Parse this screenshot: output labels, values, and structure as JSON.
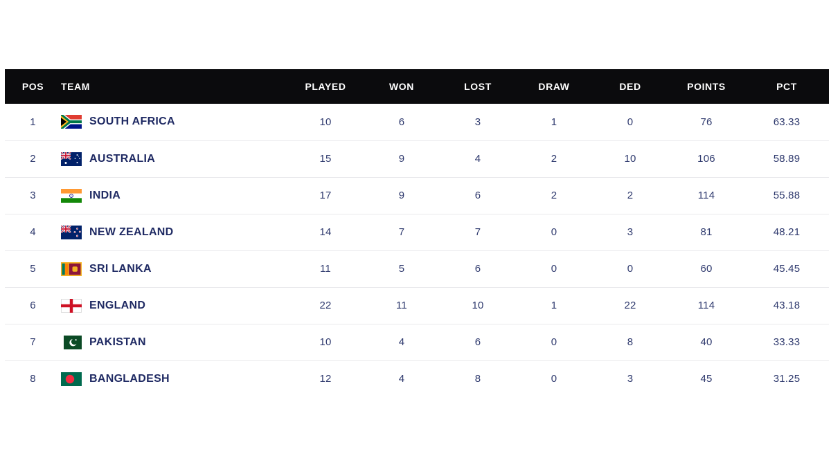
{
  "chart_data": {
    "type": "table",
    "title": "",
    "columns": [
      {
        "key": "pos",
        "label": "POS"
      },
      {
        "key": "team",
        "label": "TEAM"
      },
      {
        "key": "played",
        "label": "PLAYED"
      },
      {
        "key": "won",
        "label": "WON"
      },
      {
        "key": "lost",
        "label": "LOST"
      },
      {
        "key": "draw",
        "label": "DRAW"
      },
      {
        "key": "ded",
        "label": "DED"
      },
      {
        "key": "points",
        "label": "POINTS"
      },
      {
        "key": "pct",
        "label": "PCT"
      }
    ],
    "rows": [
      {
        "pos": "1",
        "team": "SOUTH AFRICA",
        "flag": "south-africa",
        "played": "10",
        "won": "6",
        "lost": "3",
        "draw": "1",
        "ded": "0",
        "points": "76",
        "pct": "63.33"
      },
      {
        "pos": "2",
        "team": "AUSTRALIA",
        "flag": "australia",
        "played": "15",
        "won": "9",
        "lost": "4",
        "draw": "2",
        "ded": "10",
        "points": "106",
        "pct": "58.89"
      },
      {
        "pos": "3",
        "team": "INDIA",
        "flag": "india",
        "played": "17",
        "won": "9",
        "lost": "6",
        "draw": "2",
        "ded": "2",
        "points": "114",
        "pct": "55.88"
      },
      {
        "pos": "4",
        "team": "NEW ZEALAND",
        "flag": "new-zealand",
        "played": "14",
        "won": "7",
        "lost": "7",
        "draw": "0",
        "ded": "3",
        "points": "81",
        "pct": "48.21"
      },
      {
        "pos": "5",
        "team": "SRI LANKA",
        "flag": "sri-lanka",
        "played": "11",
        "won": "5",
        "lost": "6",
        "draw": "0",
        "ded": "0",
        "points": "60",
        "pct": "45.45"
      },
      {
        "pos": "6",
        "team": "ENGLAND",
        "flag": "england",
        "played": "22",
        "won": "11",
        "lost": "10",
        "draw": "1",
        "ded": "22",
        "points": "114",
        "pct": "43.18"
      },
      {
        "pos": "7",
        "team": "PAKISTAN",
        "flag": "pakistan",
        "played": "10",
        "won": "4",
        "lost": "6",
        "draw": "0",
        "ded": "8",
        "points": "40",
        "pct": "33.33"
      },
      {
        "pos": "8",
        "team": "BANGLADESH",
        "flag": "bangladesh",
        "played": "12",
        "won": "4",
        "lost": "8",
        "draw": "0",
        "ded": "3",
        "points": "45",
        "pct": "31.25"
      }
    ]
  },
  "colors": {
    "header_background": "#0b0b0d",
    "header_text": "#ffffff",
    "row_text": "#2f3a6e",
    "team_text": "#1f2a63",
    "row_divider": "#e9e9ec",
    "page_background": "#ffffff"
  }
}
